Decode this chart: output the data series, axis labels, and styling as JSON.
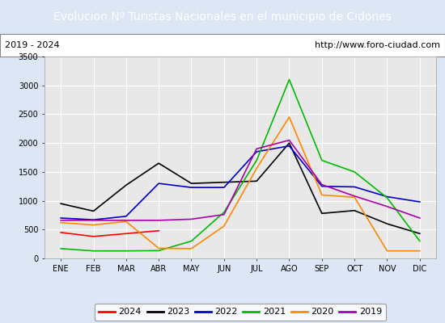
{
  "title": "Evolucion Nº Turistas Nacionales en el municipio de Cidones",
  "subtitle_left": "2019 - 2024",
  "subtitle_right": "http://www.foro-ciudad.com",
  "months": [
    "ENE",
    "FEB",
    "MAR",
    "ABR",
    "MAY",
    "JUN",
    "JUL",
    "AGO",
    "SEP",
    "OCT",
    "NOV",
    "DIC"
  ],
  "ylim": [
    0,
    3500
  ],
  "yticks": [
    0,
    500,
    1000,
    1500,
    2000,
    2500,
    3000,
    3500
  ],
  "series": {
    "2024": {
      "color": "#ff0000",
      "data": [
        450,
        380,
        430,
        480,
        null,
        null,
        null,
        null,
        null,
        null,
        null,
        null
      ]
    },
    "2023": {
      "color": "#000000",
      "data": [
        950,
        820,
        1270,
        1650,
        1300,
        1320,
        1340,
        2000,
        780,
        830,
        600,
        430
      ]
    },
    "2022": {
      "color": "#0000cc",
      "data": [
        700,
        670,
        730,
        1300,
        1230,
        1230,
        1850,
        1950,
        1250,
        1240,
        1070,
        980
      ]
    },
    "2021": {
      "color": "#00bb00",
      "data": [
        170,
        130,
        130,
        135,
        300,
        800,
        1700,
        3100,
        1700,
        1500,
        1050,
        300
      ]
    },
    "2020": {
      "color": "#ff8800",
      "data": [
        620,
        580,
        640,
        175,
        170,
        560,
        1560,
        2450,
        1100,
        1060,
        130,
        130
      ]
    },
    "2019": {
      "color": "#aa00aa",
      "data": [
        660,
        660,
        660,
        660,
        680,
        760,
        1900,
        2050,
        1280,
        1080,
        900,
        700
      ]
    }
  },
  "title_bg_color": "#5b8dd9",
  "title_text_color": "#ffffff",
  "plot_bg_color": "#e8e8e8",
  "grid_color": "#ffffff",
  "outer_bg": "#dce6f5",
  "legend_order": [
    "2024",
    "2023",
    "2022",
    "2021",
    "2020",
    "2019"
  ],
  "title_fontsize": 10,
  "tick_fontsize": 7,
  "subtitle_fontsize": 8
}
